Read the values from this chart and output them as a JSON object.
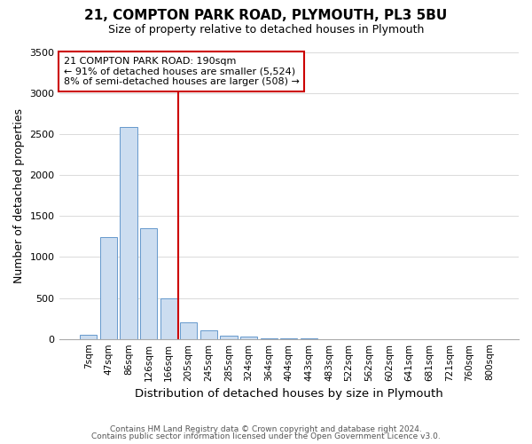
{
  "title": "21, COMPTON PARK ROAD, PLYMOUTH, PL3 5BU",
  "subtitle": "Size of property relative to detached houses in Plymouth",
  "xlabel": "Distribution of detached houses by size in Plymouth",
  "ylabel": "Number of detached properties",
  "bar_labels": [
    "7sqm",
    "47sqm",
    "86sqm",
    "126sqm",
    "166sqm",
    "205sqm",
    "245sqm",
    "285sqm",
    "324sqm",
    "364sqm",
    "404sqm",
    "443sqm",
    "483sqm",
    "522sqm",
    "562sqm",
    "602sqm",
    "641sqm",
    "681sqm",
    "721sqm",
    "760sqm",
    "800sqm"
  ],
  "bar_heights": [
    50,
    1240,
    2590,
    1350,
    500,
    200,
    110,
    45,
    25,
    10,
    5,
    2,
    1,
    0,
    0,
    0,
    0,
    0,
    0,
    0,
    0
  ],
  "bar_color": "#ccddf0",
  "bar_edge_color": "#6699cc",
  "vline_x_index": 4.5,
  "vline_color": "#cc0000",
  "annotation_title": "21 COMPTON PARK ROAD: 190sqm",
  "annotation_line1": "← 91% of detached houses are smaller (5,524)",
  "annotation_line2": "8% of semi-detached houses are larger (508) →",
  "annotation_box_facecolor": "white",
  "annotation_box_edgecolor": "#cc0000",
  "ylim": [
    0,
    3500
  ],
  "yticks": [
    0,
    500,
    1000,
    1500,
    2000,
    2500,
    3000,
    3500
  ],
  "footnote1": "Contains HM Land Registry data © Crown copyright and database right 2024.",
  "footnote2": "Contains public sector information licensed under the Open Government Licence v3.0.",
  "fig_width": 6.0,
  "fig_height": 5.0,
  "dpi": 100
}
